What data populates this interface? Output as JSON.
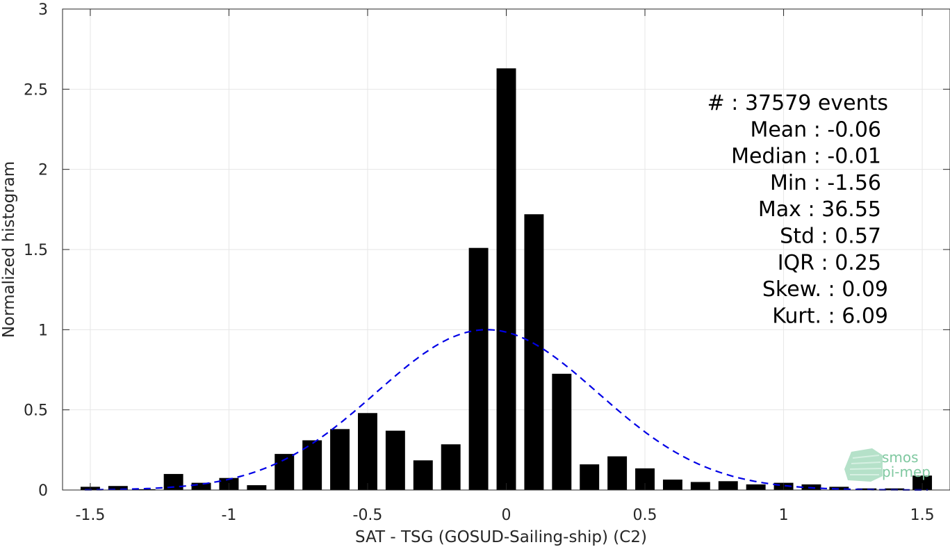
{
  "chart_data": {
    "type": "bar",
    "xlabel": "SAT - TSG (GOSUD-Sailing-ship) (C2)",
    "ylabel": "Normalized histogram",
    "xlim": [
      -1.6,
      1.6
    ],
    "ylim": [
      0,
      3
    ],
    "xticks": [
      "-1.5",
      "-1",
      "-0.5",
      "0",
      "0.5",
      "1",
      "1.5"
    ],
    "yticks": [
      "0",
      "0.5",
      "1",
      "1.5",
      "2",
      "2.5",
      "3"
    ],
    "grid": true,
    "bin_width": 0.1,
    "bin_centers": [
      -1.5,
      -1.4,
      -1.3,
      -1.2,
      -1.1,
      -1.0,
      -0.9,
      -0.8,
      -0.7,
      -0.6,
      -0.5,
      -0.4,
      -0.3,
      -0.2,
      -0.1,
      0.0,
      0.1,
      0.2,
      0.3,
      0.4,
      0.5,
      0.6,
      0.7,
      0.8,
      0.9,
      1.0,
      1.1,
      1.2,
      1.3,
      1.4,
      1.5
    ],
    "values": [
      0.02,
      0.025,
      0.005,
      0.1,
      0.045,
      0.075,
      0.03,
      0.225,
      0.31,
      0.38,
      0.48,
      0.37,
      0.185,
      0.285,
      1.51,
      2.63,
      1.72,
      0.725,
      0.16,
      0.21,
      0.135,
      0.065,
      0.05,
      0.055,
      0.035,
      0.045,
      0.035,
      0.02,
      0.01,
      0.01,
      0.09
    ],
    "bar_color": "#000000",
    "fit_curve": {
      "style": "dashed",
      "color": "#0000e6",
      "mean": -0.07,
      "peak": 1.0,
      "sigma": 0.4
    }
  },
  "stats": [
    "#  : 37579 events",
    "Mean : -0.06",
    "Median : -0.01",
    "Min : -1.56",
    "Max : 36.55",
    "Std : 0.57",
    "IQR : 0.25",
    "Skew. : 0.09",
    "Kurt. : 6.09"
  ],
  "logo": {
    "line1": "smos",
    "line2": "pi-mep",
    "color": "#7fc8a0"
  }
}
